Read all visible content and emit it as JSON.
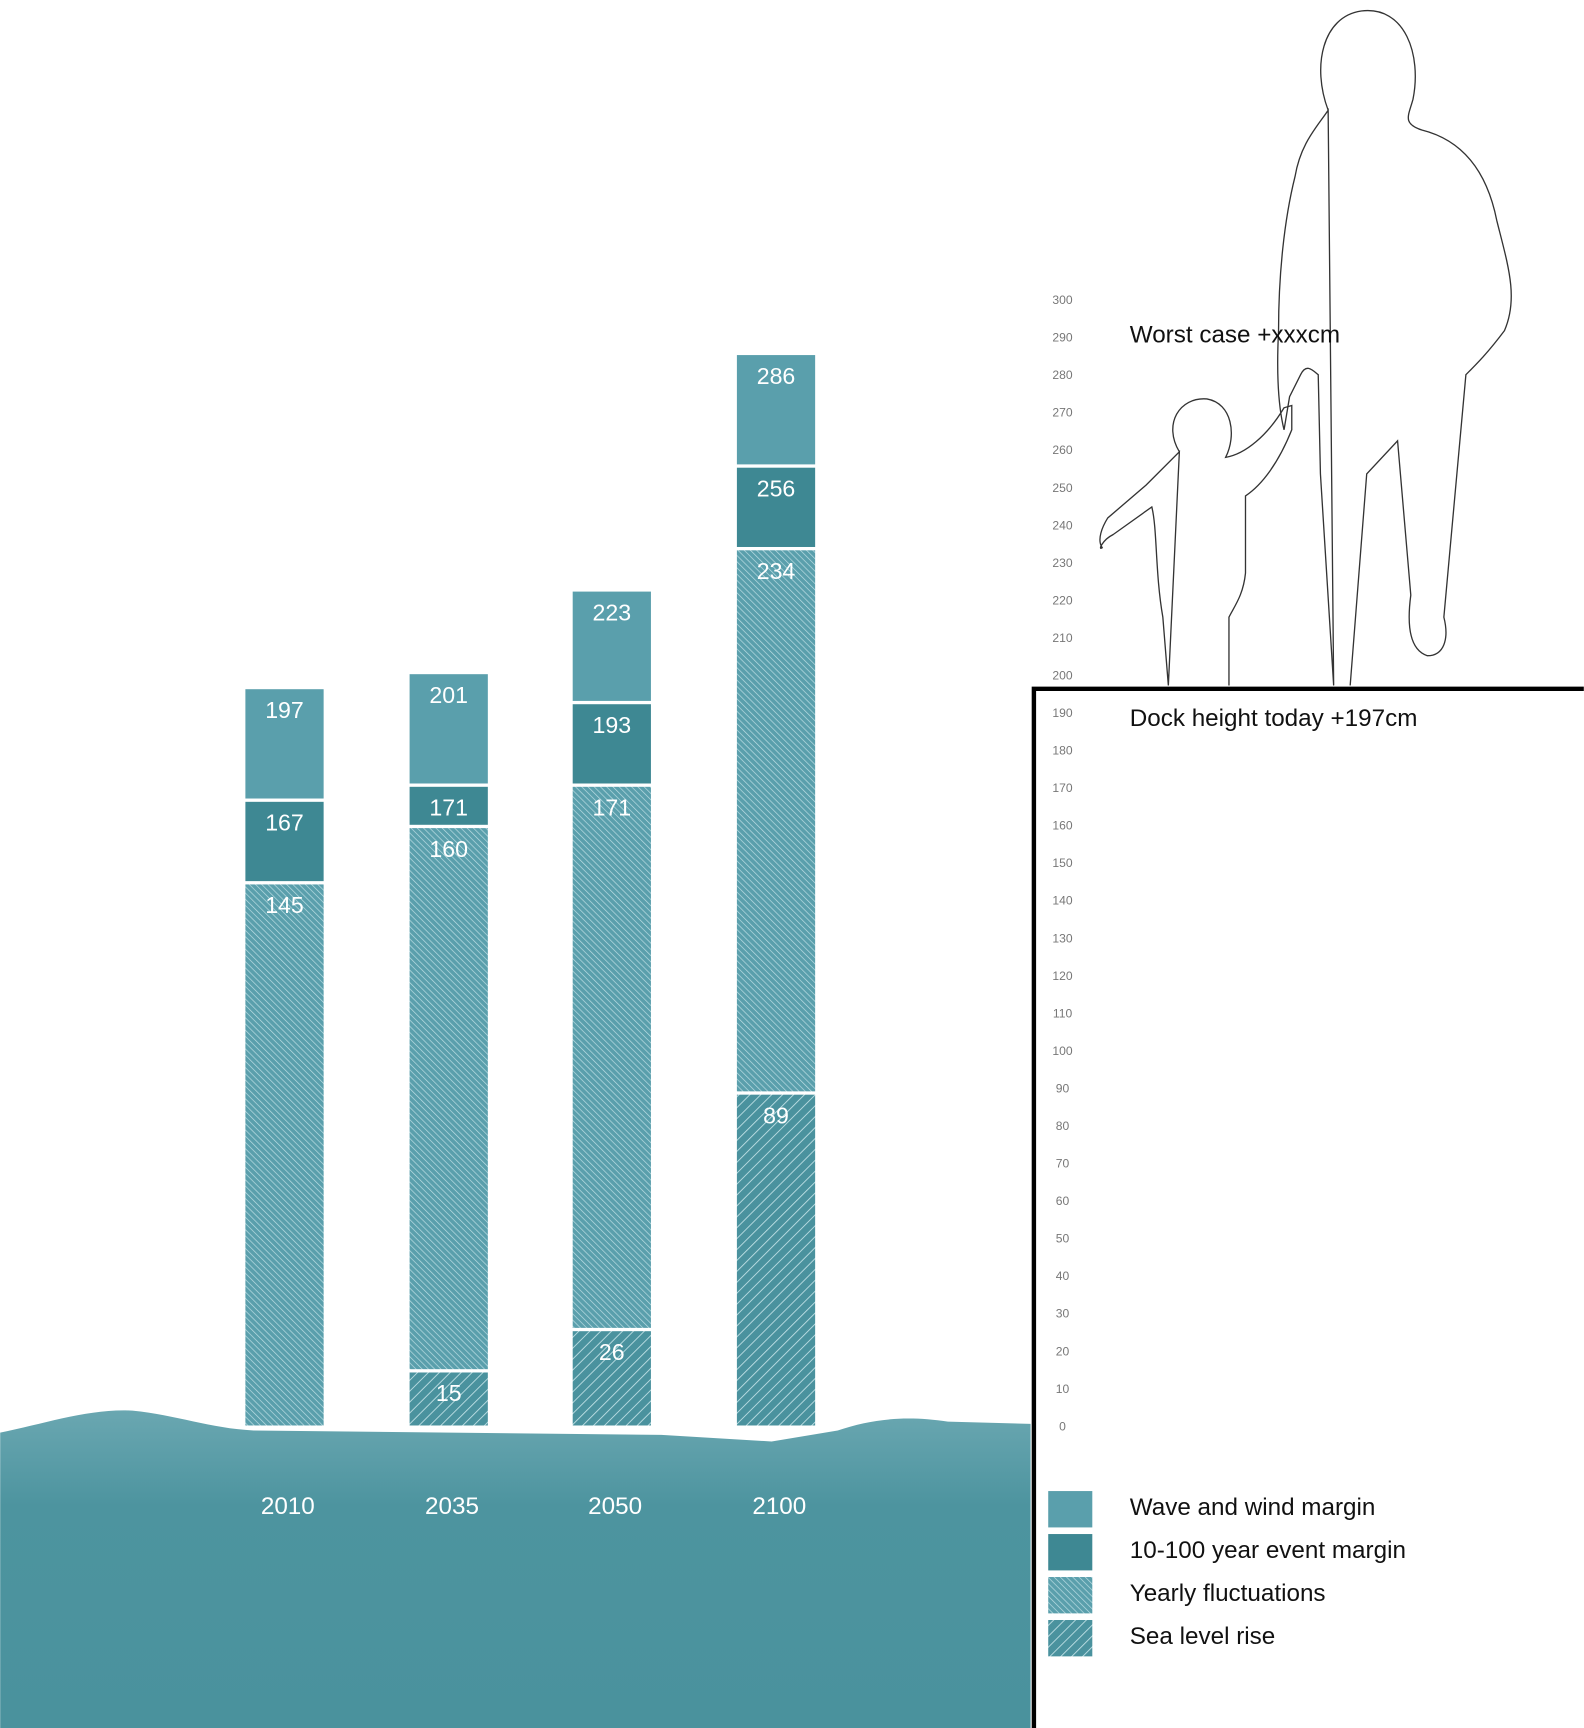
{
  "chart_data": {
    "type": "bar",
    "categories": [
      "2010",
      "2035",
      "2050",
      "2100"
    ],
    "series": [
      {
        "name": "Wave and wind margin",
        "color": "#5a9fac",
        "pattern": "solid",
        "values": [
          197,
          201,
          223,
          286
        ]
      },
      {
        "name": "10-100 year event margin",
        "color": "#3e8893",
        "pattern": "solid",
        "values": [
          167,
          171,
          193,
          256
        ]
      },
      {
        "name": "Yearly fluctuations",
        "color": "#5a9fac",
        "pattern": "hatch-fine",
        "values": [
          145,
          160,
          171,
          234
        ]
      },
      {
        "name": "Sea level rise",
        "color": "#4a929e",
        "pattern": "hatch-coarse",
        "values": [
          null,
          15,
          26,
          89
        ]
      }
    ],
    "ylim": [
      0,
      300
    ],
    "yticks": [
      0,
      10,
      20,
      30,
      40,
      50,
      60,
      70,
      80,
      90,
      100,
      110,
      120,
      130,
      140,
      150,
      160,
      170,
      180,
      190,
      200,
      210,
      220,
      230,
      240,
      250,
      260,
      270,
      280,
      290,
      300
    ],
    "annotations": [
      "Worst case +xxxcm",
      "Dock height today +197cm"
    ]
  }
}
